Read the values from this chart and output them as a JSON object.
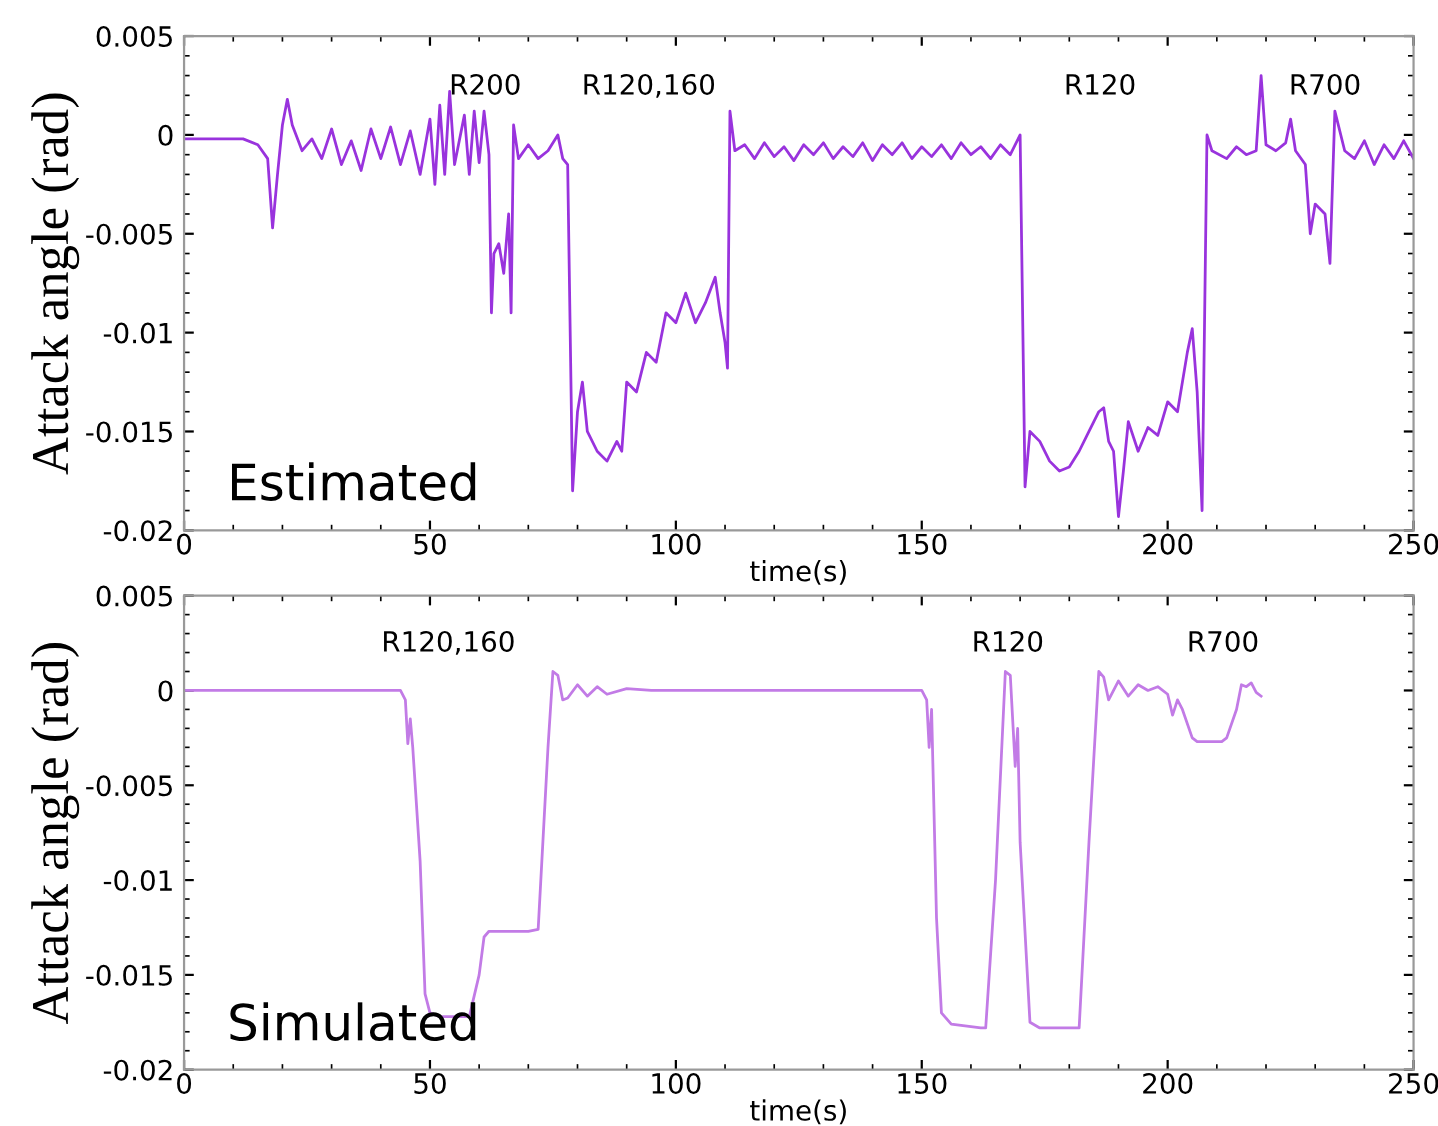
{
  "chart_data": [
    {
      "type": "line",
      "ylabel": "Attack angle (rad)",
      "xlabel": "time(s)",
      "xlim": [
        0,
        250
      ],
      "ylim": [
        -0.02,
        0.005
      ],
      "xticks": [
        0,
        50,
        100,
        150,
        200,
        250
      ],
      "yticks": [
        {
          "value": 0.005,
          "label": "0.005"
        },
        {
          "value": 0,
          "label": "0"
        },
        {
          "value": -0.005,
          "label": "-0.005"
        },
        {
          "value": -0.01,
          "label": "-0.01"
        },
        {
          "value": -0.015,
          "label": "-0.015"
        },
        {
          "value": -0.02,
          "label": "-0.02"
        }
      ],
      "grid": false,
      "legend": false,
      "marker": "none",
      "line_style": "solid",
      "annotations": [
        "R200",
        "R120,160",
        "R120",
        "R700",
        "Estimated"
      ],
      "series": [
        {
          "color": "#9933dd",
          "x": [
            0,
            12,
            15,
            17,
            18,
            19,
            20,
            21,
            22,
            24,
            26,
            28,
            30,
            32,
            34,
            36,
            38,
            40,
            42,
            44,
            46,
            48,
            50,
            51,
            52,
            53,
            54,
            55,
            57,
            58,
            59,
            60,
            61,
            62,
            62.5,
            63,
            64,
            65,
            66,
            66.5,
            67,
            68,
            70,
            72,
            74,
            76,
            77,
            78,
            79,
            80,
            81,
            82,
            84,
            86,
            88,
            89,
            90,
            92,
            94,
            96,
            98,
            100,
            102,
            104,
            106,
            108,
            109,
            110,
            110.5,
            111,
            112,
            114,
            116,
            118,
            120,
            122,
            124,
            126,
            128,
            130,
            132,
            134,
            136,
            138,
            140,
            142,
            144,
            146,
            148,
            150,
            152,
            154,
            156,
            158,
            160,
            162,
            164,
            166,
            168,
            170,
            171,
            172,
            174,
            176,
            178,
            180,
            182,
            184,
            186,
            187,
            188,
            189,
            190,
            191,
            192,
            194,
            196,
            198,
            200,
            202,
            204,
            205,
            206,
            207,
            208,
            209,
            212,
            214,
            216,
            218,
            219,
            220,
            222,
            224,
            225,
            226,
            228,
            229,
            230,
            232,
            233,
            234,
            236,
            238,
            240,
            242,
            244,
            246,
            248,
            250
          ],
          "values": [
            -0.0002,
            -0.0002,
            -0.0005,
            -0.0012,
            -0.0047,
            -0.002,
            0.0005,
            0.0018,
            0.0005,
            -0.0008,
            -0.0002,
            -0.0012,
            0.0003,
            -0.0015,
            -0.0003,
            -0.0018,
            0.0003,
            -0.0012,
            0.0004,
            -0.0015,
            0.0002,
            -0.002,
            0.0008,
            -0.0025,
            0.0015,
            -0.002,
            0.0022,
            -0.0015,
            0.001,
            -0.002,
            0.0012,
            -0.0014,
            0.0012,
            -0.001,
            -0.009,
            -0.006,
            -0.0055,
            -0.007,
            -0.004,
            -0.009,
            0.0005,
            -0.0012,
            -0.0005,
            -0.0012,
            -0.0008,
            0.0,
            -0.0012,
            -0.0015,
            -0.018,
            -0.014,
            -0.0125,
            -0.015,
            -0.016,
            -0.0165,
            -0.0155,
            -0.016,
            -0.0125,
            -0.013,
            -0.011,
            -0.0115,
            -0.009,
            -0.0095,
            -0.008,
            -0.0095,
            -0.0085,
            -0.0072,
            -0.009,
            -0.0105,
            -0.0118,
            0.0012,
            -0.0008,
            -0.0005,
            -0.0012,
            -0.0004,
            -0.0011,
            -0.0006,
            -0.0013,
            -0.0005,
            -0.001,
            -0.0004,
            -0.0012,
            -0.0006,
            -0.0011,
            -0.0004,
            -0.0013,
            -0.0005,
            -0.001,
            -0.0004,
            -0.0012,
            -0.0006,
            -0.0011,
            -0.0005,
            -0.0012,
            -0.0004,
            -0.001,
            -0.0006,
            -0.0012,
            -0.0005,
            -0.001,
            0.0,
            -0.0178,
            -0.015,
            -0.0155,
            -0.0165,
            -0.017,
            -0.0168,
            -0.016,
            -0.015,
            -0.014,
            -0.0138,
            -0.0155,
            -0.016,
            -0.0193,
            -0.017,
            -0.0145,
            -0.016,
            -0.0148,
            -0.0152,
            -0.0135,
            -0.014,
            -0.011,
            -0.0098,
            -0.013,
            -0.019,
            0.0,
            -0.0008,
            -0.0012,
            -0.0006,
            -0.001,
            -0.0008,
            0.003,
            -0.0005,
            -0.0008,
            -0.0004,
            0.0008,
            -0.0008,
            -0.0015,
            -0.005,
            -0.0035,
            -0.004,
            -0.0065,
            0.0012,
            -0.0008,
            -0.0012,
            -0.0003,
            -0.0015,
            -0.0005,
            -0.0012,
            -0.0003,
            -0.0012
          ]
        }
      ]
    },
    {
      "type": "line",
      "ylabel": "Attack angle (rad)",
      "xlabel": "time(s)",
      "xlim": [
        0,
        250
      ],
      "ylim": [
        -0.02,
        0.005
      ],
      "xticks": [
        0,
        50,
        100,
        150,
        200,
        250
      ],
      "yticks": [
        {
          "value": 0.005,
          "label": "0.005"
        },
        {
          "value": 0,
          "label": "0"
        },
        {
          "value": -0.005,
          "label": "-0.005"
        },
        {
          "value": -0.01,
          "label": "-0.01"
        },
        {
          "value": -0.015,
          "label": "-0.015"
        },
        {
          "value": -0.02,
          "label": "-0.02"
        }
      ],
      "grid": false,
      "legend": false,
      "marker": "none",
      "line_style": "solid",
      "annotations": [
        "R120,160",
        "R120",
        "R700",
        "Simulated"
      ],
      "series": [
        {
          "color": "#c27be6",
          "x": [
            0,
            44,
            45,
            45.5,
            46,
            46.5,
            48,
            49,
            50,
            52,
            58,
            60,
            61,
            62,
            70,
            72,
            74,
            75,
            76,
            77,
            78,
            80,
            82,
            84,
            86,
            90,
            95,
            150,
            151,
            151.5,
            152,
            153,
            154,
            156,
            162,
            163,
            165,
            167,
            168,
            169,
            169.5,
            170,
            172,
            174,
            182,
            184,
            186,
            187,
            188,
            190,
            192,
            194,
            196,
            198,
            200,
            201,
            202,
            203,
            205,
            206,
            211,
            212,
            214,
            215,
            216,
            217,
            218,
            219
          ],
          "values": [
            0,
            0,
            -0.0005,
            -0.0028,
            -0.0015,
            -0.003,
            -0.009,
            -0.016,
            -0.017,
            -0.0172,
            -0.0172,
            -0.015,
            -0.013,
            -0.0127,
            -0.0127,
            -0.0126,
            -0.003,
            0.001,
            0.0008,
            -0.0005,
            -0.0004,
            0.0003,
            -0.0003,
            0.0002,
            -0.0002,
            0.0001,
            0,
            0,
            -0.0005,
            -0.003,
            -0.001,
            -0.012,
            -0.017,
            -0.0176,
            -0.0178,
            -0.0178,
            -0.01,
            0.001,
            0.0008,
            -0.004,
            -0.002,
            -0.008,
            -0.0175,
            -0.0178,
            -0.0178,
            -0.008,
            0.001,
            0.0007,
            -0.0005,
            0.0005,
            -0.0003,
            0.0003,
            0,
            0.0002,
            -0.0002,
            -0.0013,
            -0.0005,
            -0.001,
            -0.0025,
            -0.0027,
            -0.0027,
            -0.0025,
            -0.001,
            0.0003,
            0.0002,
            0.0004,
            -0.0001,
            -0.0003
          ]
        }
      ]
    }
  ]
}
